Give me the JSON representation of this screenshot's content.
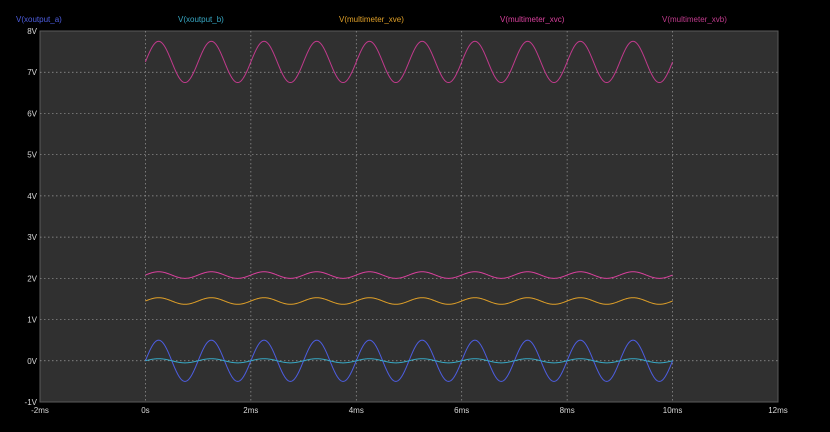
{
  "chart_data": {
    "type": "line",
    "xlim": [
      -2,
      12
    ],
    "ylim": [
      -1,
      8
    ],
    "x_unit": "ms",
    "y_unit": "V",
    "x_ticks": [
      {
        "value": -2,
        "label": "-2ms"
      },
      {
        "value": 0,
        "label": "0s"
      },
      {
        "value": 2,
        "label": "2ms"
      },
      {
        "value": 4,
        "label": "4ms"
      },
      {
        "value": 6,
        "label": "6ms"
      },
      {
        "value": 8,
        "label": "8ms"
      },
      {
        "value": 10,
        "label": "10ms"
      },
      {
        "value": 12,
        "label": "12ms"
      }
    ],
    "y_ticks": [
      {
        "value": -1,
        "label": "-1V"
      },
      {
        "value": 0,
        "label": "0V"
      },
      {
        "value": 1,
        "label": "1V"
      },
      {
        "value": 2,
        "label": "2V"
      },
      {
        "value": 3,
        "label": "3V"
      },
      {
        "value": 4,
        "label": "4V"
      },
      {
        "value": 5,
        "label": "5V"
      },
      {
        "value": 6,
        "label": "6V"
      },
      {
        "value": 7,
        "label": "7V"
      },
      {
        "value": 8,
        "label": "8V"
      }
    ],
    "grid": true,
    "legend": "top",
    "background": "#303030",
    "grid_color": "#9a9a9a",
    "series": [
      {
        "name": "V(xoutput_a)",
        "color": "#4d5de0",
        "offset": 0.0,
        "amplitude": 0.5,
        "frequency_khz": 1.0,
        "t_start": 0,
        "t_end": 10
      },
      {
        "name": "V(xoutput_b)",
        "color": "#37a8c4",
        "offset": 0.0,
        "amplitude": 0.05,
        "frequency_khz": 1.0,
        "t_start": 0,
        "t_end": 10
      },
      {
        "name": "V(multimeter_xve)",
        "color": "#e0a028",
        "offset": 1.45,
        "amplitude": 0.08,
        "frequency_khz": 1.0,
        "t_start": 0,
        "t_end": 10
      },
      {
        "name": "V(multimeter_xvc)",
        "color": "#d8409c",
        "offset": 2.08,
        "amplitude": 0.08,
        "frequency_khz": 1.0,
        "t_start": 0,
        "t_end": 10
      },
      {
        "name": "V(multimeter_xvb)",
        "color": "#c03a8c",
        "offset": 7.25,
        "amplitude": 0.5,
        "frequency_khz": 1.0,
        "t_start": 0,
        "t_end": 10
      }
    ]
  }
}
